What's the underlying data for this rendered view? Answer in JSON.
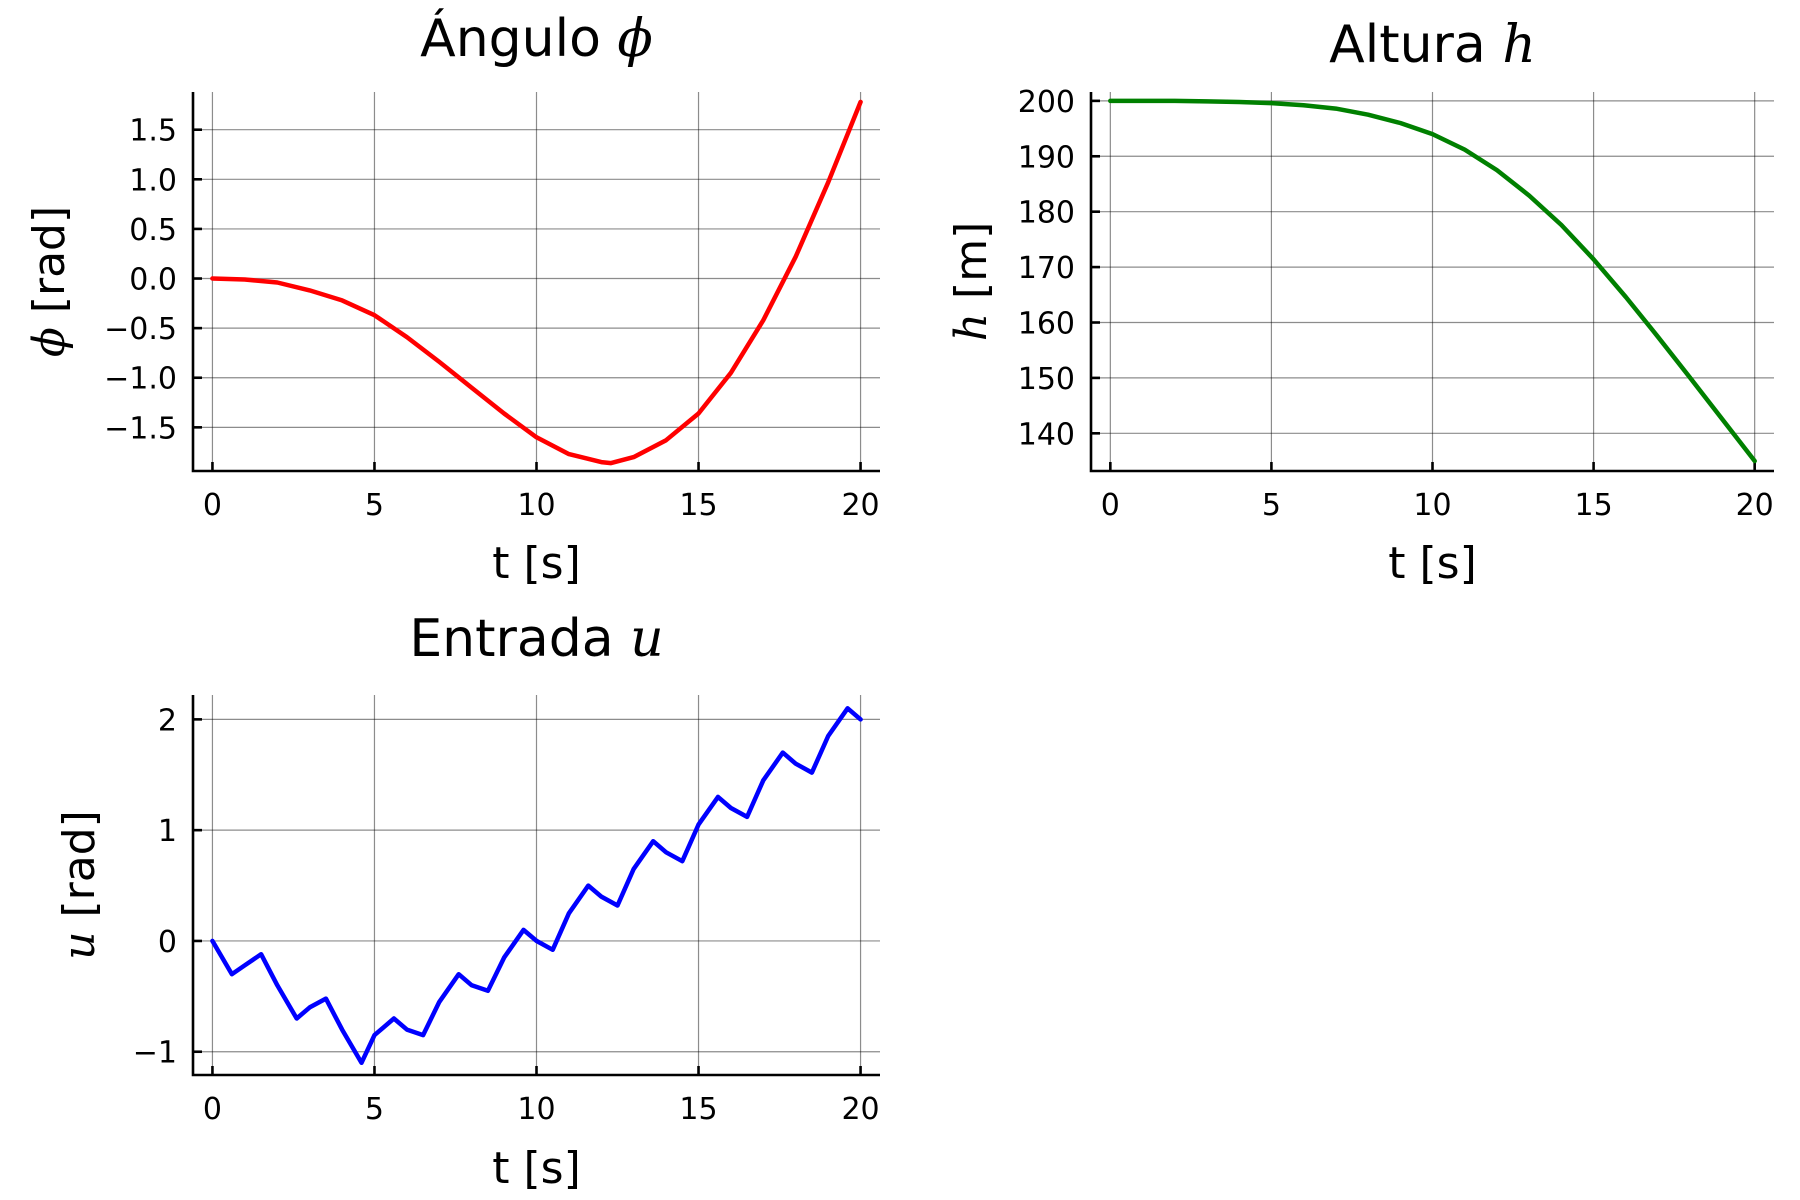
{
  "chart_data": [
    {
      "type": "line",
      "title": "Ángulo",
      "title_math": "ϕ",
      "xlabel": "t [s]",
      "ylabel": "[rad]",
      "ylabel_math": "ϕ",
      "xlim": [
        -0.6,
        20.6
      ],
      "ylim": [
        -1.94,
        1.88
      ],
      "xticks": [
        0,
        5,
        10,
        15,
        20
      ],
      "xtick_labels": [
        "0",
        "5",
        "10",
        "15",
        "20"
      ],
      "yticks": [
        -1.5,
        -1.0,
        -0.5,
        0.0,
        0.5,
        1.0,
        1.5
      ],
      "ytick_labels": [
        "−1.5",
        "−1.0",
        "−0.5",
        "0.0",
        "0.5",
        "1.0",
        "1.5"
      ],
      "grid": true,
      "color": "#ff0000",
      "series": [
        {
          "x": [
            0,
            1,
            2,
            3,
            4,
            5,
            6,
            7,
            8,
            9,
            10,
            11,
            12,
            12.3,
            13,
            14,
            15,
            16,
            17,
            18,
            19,
            20
          ],
          "values": [
            0.0,
            -0.01,
            -0.04,
            -0.12,
            -0.22,
            -0.37,
            -0.59,
            -0.84,
            -1.1,
            -1.36,
            -1.6,
            -1.77,
            -1.85,
            -1.86,
            -1.8,
            -1.63,
            -1.36,
            -0.95,
            -0.42,
            0.22,
            0.97,
            1.78
          ]
        }
      ]
    },
    {
      "type": "line",
      "title": "Altura",
      "title_math": "h",
      "xlabel": "t [s]",
      "ylabel": "[m]",
      "ylabel_math": "h",
      "xlim": [
        -0.6,
        20.6
      ],
      "ylim": [
        133.2,
        201.6
      ],
      "xticks": [
        0,
        5,
        10,
        15,
        20
      ],
      "xtick_labels": [
        "0",
        "5",
        "10",
        "15",
        "20"
      ],
      "yticks": [
        140,
        150,
        160,
        170,
        180,
        190,
        200
      ],
      "ytick_labels": [
        "140",
        "150",
        "160",
        "170",
        "180",
        "190",
        "200"
      ],
      "grid": true,
      "color": "#008000",
      "series": [
        {
          "x": [
            0,
            1,
            2,
            3,
            4,
            5,
            6,
            7,
            8,
            9,
            10,
            11,
            12,
            13,
            14,
            15,
            16,
            17,
            18,
            19,
            20
          ],
          "values": [
            200,
            200,
            200,
            199.9,
            199.8,
            199.6,
            199.2,
            198.6,
            197.5,
            196.0,
            194.0,
            191.2,
            187.5,
            182.9,
            177.6,
            171.4,
            164.6,
            157.4,
            150.0,
            142.5,
            135
          ]
        }
      ]
    },
    {
      "type": "line",
      "title": "Entrada",
      "title_math": "u",
      "xlabel": "t [s]",
      "ylabel": "[rad]",
      "ylabel_math": "u",
      "xlim": [
        -0.6,
        20.6
      ],
      "ylim": [
        -1.21,
        2.22
      ],
      "xticks": [
        0,
        5,
        10,
        15,
        20
      ],
      "xtick_labels": [
        "0",
        "5",
        "10",
        "15",
        "20"
      ],
      "yticks": [
        -1,
        0,
        1,
        2
      ],
      "ytick_labels": [
        "−1",
        "0",
        "1",
        "2"
      ],
      "grid": true,
      "color": "#0000ff",
      "series": [
        {
          "x": [
            0,
            0.6,
            1.0,
            1.5,
            2.0,
            2.6,
            3.0,
            3.5,
            4.0,
            4.6,
            5.0,
            5.6,
            6.0,
            6.5,
            7.0,
            7.6,
            8.0,
            8.5,
            9.0,
            9.6,
            10.0,
            10.5,
            11.0,
            11.6,
            12.0,
            12.5,
            13.0,
            13.6,
            14.0,
            14.5,
            15.0,
            15.6,
            16.0,
            16.5,
            17.0,
            17.6,
            18.0,
            18.5,
            19.0,
            19.6,
            20.0
          ],
          "values": [
            0.0,
            -0.3,
            -0.22,
            -0.12,
            -0.4,
            -0.7,
            -0.6,
            -0.52,
            -0.8,
            -1.1,
            -0.85,
            -0.7,
            -0.8,
            -0.85,
            -0.55,
            -0.3,
            -0.4,
            -0.45,
            -0.15,
            0.1,
            0.0,
            -0.08,
            0.25,
            0.5,
            0.4,
            0.32,
            0.65,
            0.9,
            0.8,
            0.72,
            1.05,
            1.3,
            1.2,
            1.12,
            1.45,
            1.7,
            1.6,
            1.52,
            1.85,
            2.1,
            2.0
          ]
        }
      ]
    }
  ]
}
